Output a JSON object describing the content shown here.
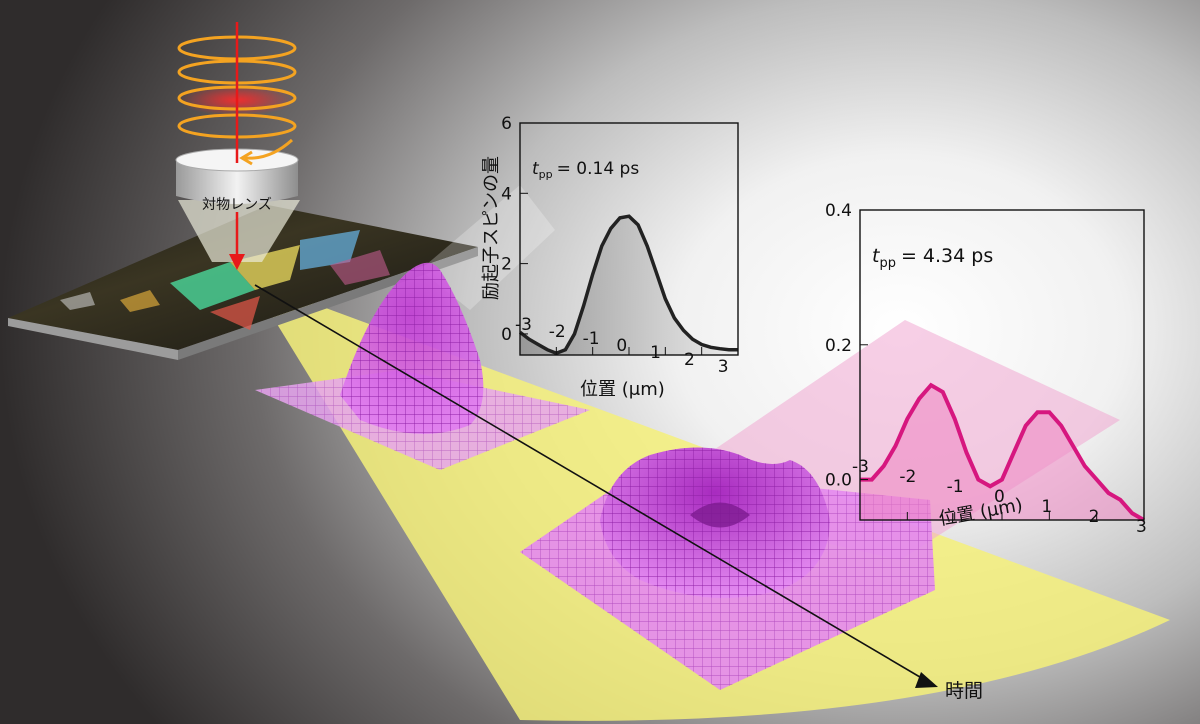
{
  "objective_label": "対物レンズ",
  "time_label": "時間",
  "y_axis_label": "励起子スピンの量",
  "chart_data": [
    {
      "type": "line",
      "annotation_var": "t",
      "annotation_sub": "pp",
      "annotation_val": "= 0.14 ps",
      "xlabel": "位置 (μm)",
      "ylabel": "励起子スピンの量",
      "xlim": [
        -3,
        3
      ],
      "ylim": [
        -0.6,
        6
      ],
      "x_ticks": [
        "-3",
        "-2",
        "-1",
        "0",
        "1",
        "2",
        "3"
      ],
      "y_ticks": [
        "0",
        "2",
        "4",
        "6"
      ],
      "x": [
        -3,
        -2.75,
        -2.5,
        -2.25,
        -2,
        -1.75,
        -1.5,
        -1.25,
        -1,
        -0.75,
        -0.5,
        -0.25,
        0,
        0.25,
        0.5,
        0.75,
        1,
        1.25,
        1.5,
        1.75,
        2,
        2.25,
        2.5,
        2.75,
        3
      ],
      "y": [
        0.05,
        -0.15,
        -0.3,
        -0.45,
        -0.55,
        -0.45,
        0,
        0.8,
        1.7,
        2.5,
        3.0,
        3.3,
        3.35,
        3.1,
        2.5,
        1.75,
        1.0,
        0.45,
        0.1,
        -0.15,
        -0.3,
        -0.38,
        -0.42,
        -0.45,
        -0.45
      ],
      "color": "#222222"
    },
    {
      "type": "line",
      "annotation_var": "t",
      "annotation_sub": "pp",
      "annotation_val": "= 4.34 ps",
      "xlabel": "位置 (μm)",
      "ylabel": "",
      "xlim": [
        -3,
        3
      ],
      "ylim": [
        -0.06,
        0.4
      ],
      "x_ticks": [
        "-3",
        "-2",
        "-1",
        "0",
        "1",
        "2",
        "3"
      ],
      "y_ticks": [
        "0.0",
        "0.2",
        "0.4"
      ],
      "x": [
        -3,
        -2.75,
        -2.5,
        -2.25,
        -2,
        -1.75,
        -1.5,
        -1.25,
        -1,
        -0.75,
        -0.5,
        -0.25,
        0,
        0.25,
        0.5,
        0.75,
        1,
        1.25,
        1.5,
        1.75,
        2,
        2.25,
        2.5,
        2.75,
        3
      ],
      "y": [
        0.0,
        0.0,
        0.02,
        0.05,
        0.09,
        0.12,
        0.14,
        0.13,
        0.09,
        0.04,
        0.0,
        -0.01,
        0.0,
        0.04,
        0.08,
        0.1,
        0.1,
        0.08,
        0.05,
        0.02,
        0.0,
        -0.02,
        -0.03,
        -0.05,
        -0.06
      ],
      "color": "#d6177f"
    }
  ]
}
